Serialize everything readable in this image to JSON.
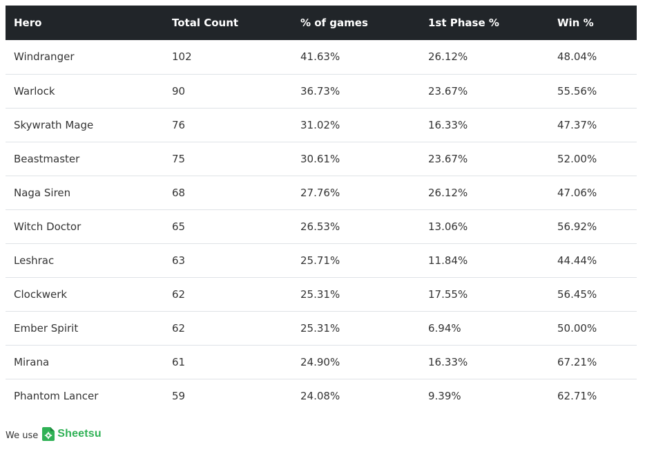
{
  "table": {
    "headers": [
      "Hero",
      "Total Count",
      "% of games",
      "1st Phase %",
      "Win %"
    ],
    "rows": [
      [
        "Windranger",
        "102",
        "41.63%",
        "26.12%",
        "48.04%"
      ],
      [
        "Warlock",
        "90",
        "36.73%",
        "23.67%",
        "55.56%"
      ],
      [
        "Skywrath Mage",
        "76",
        "31.02%",
        "16.33%",
        "47.37%"
      ],
      [
        "Beastmaster",
        "75",
        "30.61%",
        "23.67%",
        "52.00%"
      ],
      [
        "Naga Siren",
        "68",
        "27.76%",
        "26.12%",
        "47.06%"
      ],
      [
        "Witch Doctor",
        "65",
        "26.53%",
        "13.06%",
        "56.92%"
      ],
      [
        "Leshrac",
        "63",
        "25.71%",
        "11.84%",
        "44.44%"
      ],
      [
        "Clockwerk",
        "62",
        "25.31%",
        "17.55%",
        "56.45%"
      ],
      [
        "Ember Spirit",
        "62",
        "25.31%",
        "6.94%",
        "50.00%"
      ],
      [
        "Mirana",
        "61",
        "24.90%",
        "16.33%",
        "67.21%"
      ],
      [
        "Phantom Lancer",
        "59",
        "24.08%",
        "9.39%",
        "62.71%"
      ]
    ]
  },
  "footer": {
    "prefix": "We use",
    "brand": "Sheetsu",
    "brand_icon": "sheetsu-logo-icon",
    "brand_color": "#2fb155"
  },
  "colors": {
    "header_bg": "#212529",
    "row_divider": "#dee2e6"
  }
}
